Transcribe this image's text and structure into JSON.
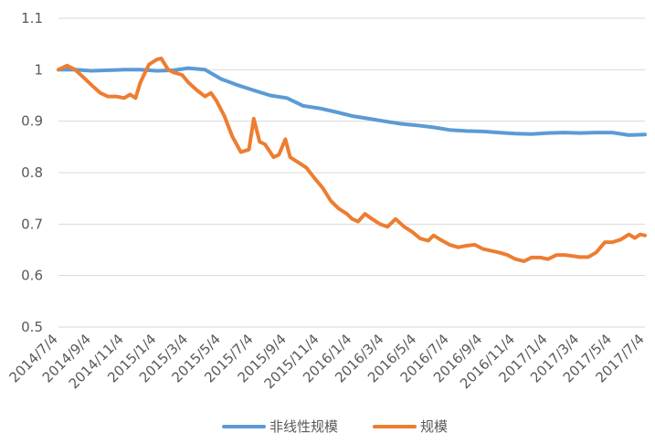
{
  "chart_data": {
    "type": "line",
    "title": "",
    "xlabel": "",
    "ylabel": "",
    "ylim": [
      0.5,
      1.1
    ],
    "yticks": [
      "0.5",
      "0.6",
      "0.7",
      "0.8",
      "0.9",
      "1",
      "1.1"
    ],
    "xticks": [
      "2014/7/4",
      "2014/9/4",
      "2014/11/4",
      "2015/1/4",
      "2015/3/4",
      "2015/5/4",
      "2015/7/4",
      "2015/9/4",
      "2015/11/4",
      "2016/1/4",
      "2016/3/4",
      "2016/5/4",
      "2016/7/4",
      "2016/9/4",
      "2016/11/4",
      "2017/1/4",
      "2017/3/4",
      "2017/5/4",
      "2017/7/4"
    ],
    "grid": true,
    "legend_position": "bottom",
    "series": [
      {
        "name": "非线性规模",
        "color": "#5b9bd5",
        "points": [
          [
            "2014/7/4",
            1.0
          ],
          [
            "2014/8/4",
            1.0
          ],
          [
            "2014/9/4",
            0.998
          ],
          [
            "2014/10/4",
            0.999
          ],
          [
            "2014/11/4",
            1.0
          ],
          [
            "2014/12/4",
            1.0
          ],
          [
            "2015/1/4",
            0.998
          ],
          [
            "2015/2/4",
            0.999
          ],
          [
            "2015/3/4",
            1.003
          ],
          [
            "2015/4/4",
            1.0
          ],
          [
            "2015/5/4",
            0.982
          ],
          [
            "2015/6/4",
            0.97
          ],
          [
            "2015/7/4",
            0.96
          ],
          [
            "2015/8/4",
            0.95
          ],
          [
            "2015/9/4",
            0.945
          ],
          [
            "2015/10/4",
            0.93
          ],
          [
            "2015/11/4",
            0.925
          ],
          [
            "2015/12/4",
            0.918
          ],
          [
            "2016/1/4",
            0.91
          ],
          [
            "2016/2/4",
            0.905
          ],
          [
            "2016/3/4",
            0.9
          ],
          [
            "2016/4/4",
            0.895
          ],
          [
            "2016/5/4",
            0.892
          ],
          [
            "2016/6/4",
            0.888
          ],
          [
            "2016/7/4",
            0.883
          ],
          [
            "2016/8/4",
            0.881
          ],
          [
            "2016/9/4",
            0.88
          ],
          [
            "2016/10/4",
            0.878
          ],
          [
            "2016/11/4",
            0.876
          ],
          [
            "2016/12/4",
            0.875
          ],
          [
            "2017/1/4",
            0.877
          ],
          [
            "2017/2/4",
            0.878
          ],
          [
            "2017/3/4",
            0.877
          ],
          [
            "2017/4/4",
            0.878
          ],
          [
            "2017/5/4",
            0.878
          ],
          [
            "2017/6/4",
            0.873
          ],
          [
            "2017/7/4",
            0.874
          ]
        ]
      },
      {
        "name": "规模",
        "color": "#ed7d31",
        "points": [
          [
            "2014/7/4",
            1.0
          ],
          [
            "2014/7/20",
            1.008
          ],
          [
            "2014/8/4",
            1.0
          ],
          [
            "2014/8/20",
            0.985
          ],
          [
            "2014/9/4",
            0.97
          ],
          [
            "2014/9/20",
            0.955
          ],
          [
            "2014/10/4",
            0.948
          ],
          [
            "2014/10/20",
            0.948
          ],
          [
            "2014/11/4",
            0.945
          ],
          [
            "2014/11/15",
            0.952
          ],
          [
            "2014/11/25",
            0.945
          ],
          [
            "2014/12/4",
            0.975
          ],
          [
            "2014/12/20",
            1.01
          ],
          [
            "2015/1/4",
            1.02
          ],
          [
            "2015/1/12",
            1.022
          ],
          [
            "2015/1/25",
            1.0
          ],
          [
            "2015/2/4",
            0.995
          ],
          [
            "2015/2/20",
            0.99
          ],
          [
            "2015/3/4",
            0.975
          ],
          [
            "2015/3/20",
            0.96
          ],
          [
            "2015/4/4",
            0.948
          ],
          [
            "2015/4/15",
            0.955
          ],
          [
            "2015/4/25",
            0.94
          ],
          [
            "2015/5/10",
            0.91
          ],
          [
            "2015/5/25",
            0.87
          ],
          [
            "2015/6/10",
            0.84
          ],
          [
            "2015/6/25",
            0.845
          ],
          [
            "2015/7/4",
            0.905
          ],
          [
            "2015/7/15",
            0.86
          ],
          [
            "2015/7/25",
            0.855
          ],
          [
            "2015/8/10",
            0.83
          ],
          [
            "2015/8/20",
            0.835
          ],
          [
            "2015/9/1",
            0.865
          ],
          [
            "2015/9/10",
            0.83
          ],
          [
            "2015/9/25",
            0.82
          ],
          [
            "2015/10/10",
            0.81
          ],
          [
            "2015/10/25",
            0.79
          ],
          [
            "2015/11/10",
            0.77
          ],
          [
            "2015/11/25",
            0.745
          ],
          [
            "2015/12/10",
            0.73
          ],
          [
            "2015/12/25",
            0.72
          ],
          [
            "2016/1/4",
            0.71
          ],
          [
            "2016/1/15",
            0.705
          ],
          [
            "2016/1/28",
            0.72
          ],
          [
            "2016/2/10",
            0.71
          ],
          [
            "2016/2/25",
            0.7
          ],
          [
            "2016/3/10",
            0.695
          ],
          [
            "2016/3/25",
            0.71
          ],
          [
            "2016/4/10",
            0.695
          ],
          [
            "2016/4/25",
            0.685
          ],
          [
            "2016/5/10",
            0.672
          ],
          [
            "2016/5/25",
            0.668
          ],
          [
            "2016/6/4",
            0.678
          ],
          [
            "2016/6/20",
            0.668
          ],
          [
            "2016/7/4",
            0.66
          ],
          [
            "2016/7/20",
            0.655
          ],
          [
            "2016/8/4",
            0.658
          ],
          [
            "2016/8/20",
            0.66
          ],
          [
            "2016/9/4",
            0.652
          ],
          [
            "2016/9/20",
            0.648
          ],
          [
            "2016/10/4",
            0.645
          ],
          [
            "2016/10/20",
            0.64
          ],
          [
            "2016/11/4",
            0.632
          ],
          [
            "2016/11/20",
            0.628
          ],
          [
            "2016/12/4",
            0.635
          ],
          [
            "2016/12/20",
            0.635
          ],
          [
            "2017/1/4",
            0.632
          ],
          [
            "2017/1/20",
            0.64
          ],
          [
            "2017/2/4",
            0.64
          ],
          [
            "2017/2/20",
            0.638
          ],
          [
            "2017/3/4",
            0.636
          ],
          [
            "2017/3/20",
            0.636
          ],
          [
            "2017/4/4",
            0.645
          ],
          [
            "2017/4/20",
            0.665
          ],
          [
            "2017/5/4",
            0.665
          ],
          [
            "2017/5/20",
            0.67
          ],
          [
            "2017/6/4",
            0.68
          ],
          [
            "2017/6/15",
            0.673
          ],
          [
            "2017/6/25",
            0.68
          ],
          [
            "2017/7/4",
            0.678
          ]
        ]
      }
    ]
  }
}
